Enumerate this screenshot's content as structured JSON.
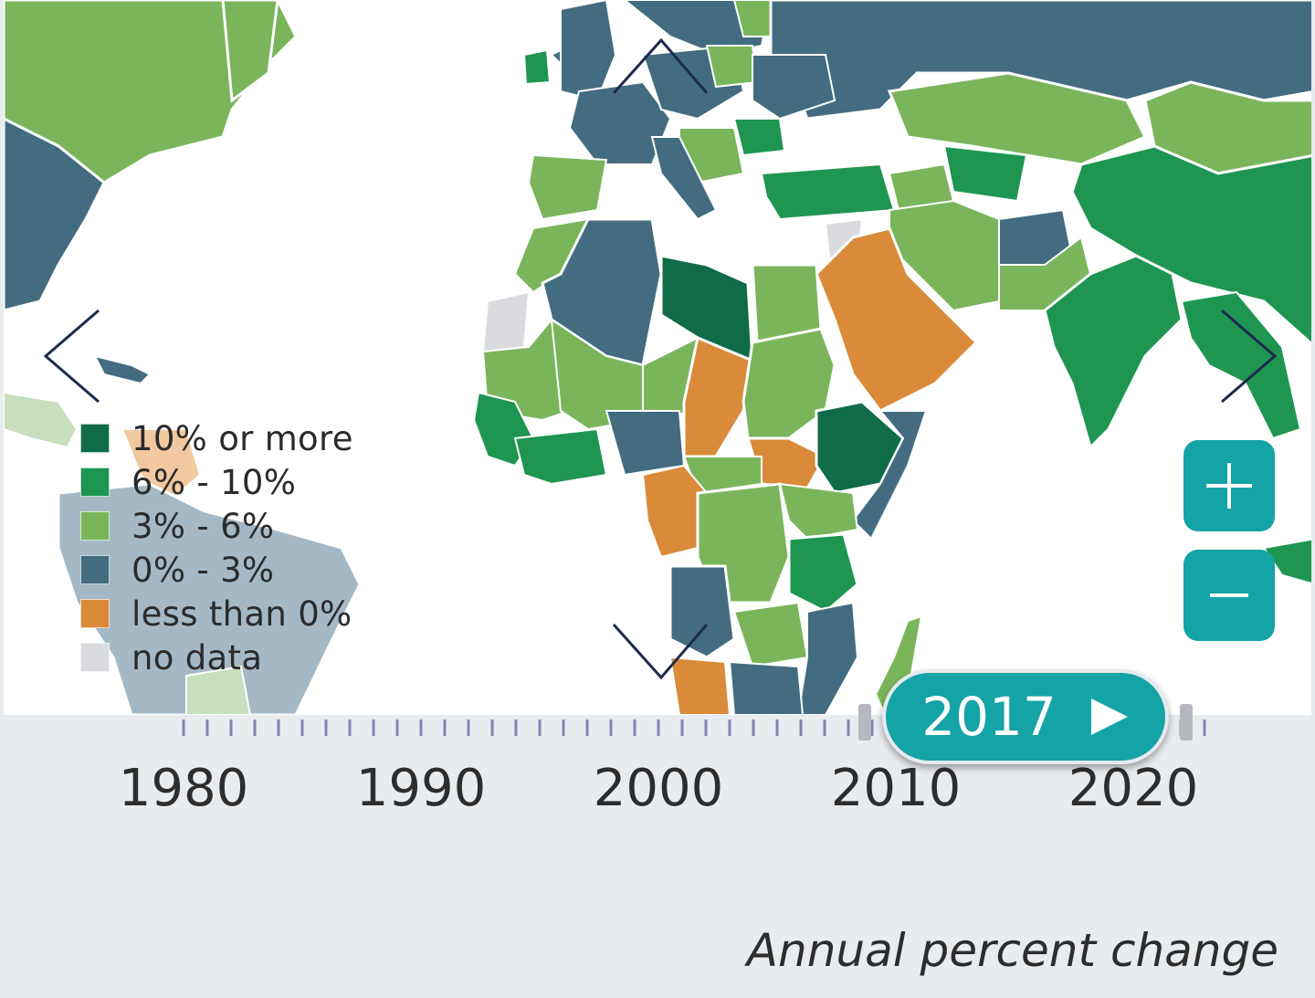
{
  "legend": {
    "items": [
      {
        "label": "10% or more",
        "color": "#0f6b48"
      },
      {
        "label": "6% - 10%",
        "color": "#1e9651"
      },
      {
        "label": "3% - 6%",
        "color": "#7ab55c"
      },
      {
        "label": "0% - 3%",
        "color": "#436c80"
      },
      {
        "label": "less than 0%",
        "color": "#d98b3a"
      },
      {
        "label": "no data",
        "color": "#d9dbde"
      }
    ]
  },
  "icons": {
    "pan_up": "chevron-up-icon",
    "pan_down": "chevron-down-icon",
    "pan_left": "chevron-left-icon",
    "pan_right": "chevron-right-icon",
    "zoom_in": "plus-icon",
    "zoom_out": "minus-icon",
    "play": "play-icon"
  },
  "zoom": {
    "in_symbol": "+",
    "out_symbol": "−",
    "color": "#14a3a6"
  },
  "timeline": {
    "axis_labels": [
      "1980",
      "1990",
      "2000",
      "2010",
      "2020"
    ],
    "start_year": 1980,
    "end_year": 2023,
    "selected_year": "2017",
    "play_symbol": "▶",
    "tick_color": "#8a7fb3"
  },
  "caption": "Annual percent change",
  "colors": {
    "accent": "#14a3a6",
    "arrow": "#1d2a4d",
    "timeline_bg": "#e9ecef"
  }
}
